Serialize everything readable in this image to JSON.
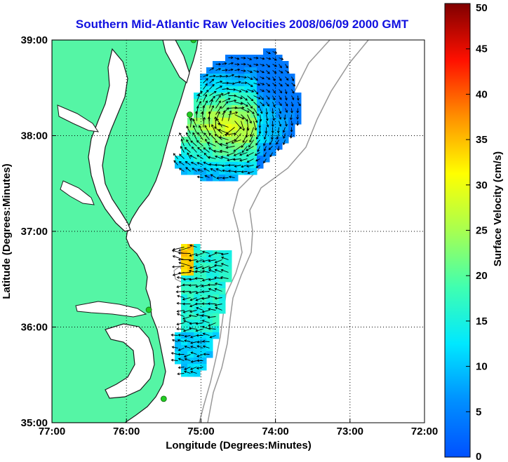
{
  "title": "Southern Mid-Atlantic Raw Velocities 2008/06/09 2000 GMT",
  "chart_data": {
    "type": "heatmap",
    "subtype": "map-vector-field",
    "title": "Southern Mid-Atlantic Raw Velocities 2008/06/09 2000 GMT",
    "xlabel": "Longitude (Degrees:Minutes)",
    "ylabel": "Latitude (Degrees:Minutes)",
    "x_range": [
      -77,
      -72
    ],
    "y_range": [
      35,
      39
    ],
    "x_ticks": [
      {
        "value": -77,
        "label": "77:00"
      },
      {
        "value": -76,
        "label": "76:00"
      },
      {
        "value": -75,
        "label": "75:00"
      },
      {
        "value": -74,
        "label": "74:00"
      },
      {
        "value": -73,
        "label": "73:00"
      },
      {
        "value": -72,
        "label": "72:00"
      }
    ],
    "y_ticks": [
      {
        "value": 35,
        "label": "35:00"
      },
      {
        "value": 36,
        "label": "36:00"
      },
      {
        "value": 37,
        "label": "37:00"
      },
      {
        "value": 38,
        "label": "38:00"
      },
      {
        "value": 39,
        "label": "39:00"
      }
    ],
    "grid": "dotted",
    "colorbar": {
      "label": "Surface Velocity (cm/s)",
      "range": [
        0,
        50
      ],
      "ticks": [
        0,
        5,
        10,
        15,
        20,
        25,
        30,
        35,
        40,
        45,
        50
      ],
      "colormap": "jet",
      "placement": "right"
    },
    "land_color": "#55f5a5",
    "colors": {
      "land": "#55f5a5",
      "contour": "#999999",
      "station": "#22cc22",
      "title": "#1010e0"
    },
    "stations": [
      {
        "lon": -75.1,
        "lat": 39.0
      },
      {
        "lon": -75.15,
        "lat": 38.22
      },
      {
        "lon": -75.7,
        "lat": 36.18
      },
      {
        "lon": -75.5,
        "lat": 35.25
      }
    ],
    "velocity_regions": [
      {
        "name": "northern-field",
        "lon": [
          -75.25,
          -73.7
        ],
        "lat": [
          37.6,
          38.9
        ],
        "speed_center": 22
      },
      {
        "name": "southern-field",
        "lon": [
          -75.25,
          -74.4
        ],
        "lat": [
          35.5,
          36.8
        ],
        "speed_center": 13
      }
    ]
  }
}
